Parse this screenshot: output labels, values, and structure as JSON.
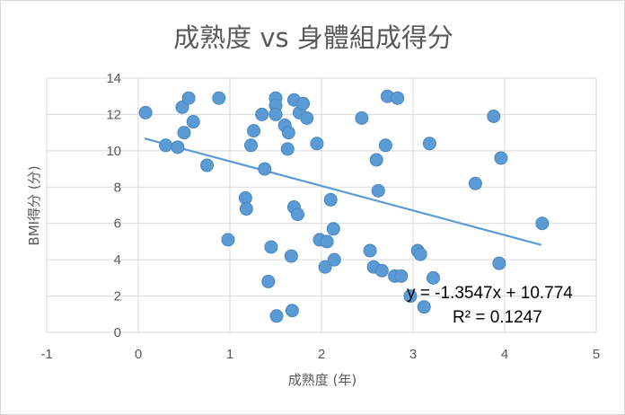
{
  "chart_data": {
    "type": "scatter",
    "title": "成熟度 vs 身體組成得分",
    "xlabel": "成熟度 (年)",
    "ylabel": "BMI得分 (分)",
    "xlim": [
      -1,
      5
    ],
    "ylim": [
      0,
      14
    ],
    "x_ticks": [
      "-1",
      "0",
      "1",
      "2",
      "3",
      "4",
      "5"
    ],
    "y_ticks": [
      "0",
      "2",
      "4",
      "6",
      "8",
      "10",
      "12",
      "14"
    ],
    "grid": true,
    "colors": {
      "point": "#5b9bd5",
      "point_edge": "#4a86be",
      "trendline": "#5b9bd5",
      "grid": "#d9d9d9",
      "text": "#595959"
    },
    "trendline": {
      "type": "linear",
      "slope": -1.3547,
      "intercept": 10.774,
      "x_range": [
        0.07,
        4.4
      ]
    },
    "annotations": {
      "equation": "y = -1.3547x + 10.774",
      "r_squared": "R² = 0.1247"
    },
    "series": [
      {
        "name": "BMI得分",
        "points": [
          [
            0.08,
            12.1
          ],
          [
            0.3,
            10.3
          ],
          [
            0.43,
            10.2
          ],
          [
            0.48,
            12.4
          ],
          [
            0.5,
            11.0
          ],
          [
            0.55,
            12.9
          ],
          [
            0.6,
            11.6
          ],
          [
            0.75,
            9.2
          ],
          [
            0.88,
            12.9
          ],
          [
            0.98,
            5.1
          ],
          [
            1.17,
            7.4
          ],
          [
            1.18,
            6.8
          ],
          [
            1.23,
            10.3
          ],
          [
            1.26,
            11.1
          ],
          [
            1.35,
            12.0
          ],
          [
            1.38,
            9.0
          ],
          [
            1.42,
            2.8
          ],
          [
            1.45,
            4.7
          ],
          [
            1.5,
            12.9
          ],
          [
            1.5,
            12.5
          ],
          [
            1.5,
            12.0
          ],
          [
            1.51,
            0.9
          ],
          [
            1.6,
            11.4
          ],
          [
            1.63,
            10.1
          ],
          [
            1.64,
            11.0
          ],
          [
            1.67,
            4.2
          ],
          [
            1.68,
            1.2
          ],
          [
            1.7,
            12.8
          ],
          [
            1.7,
            6.9
          ],
          [
            1.74,
            6.5
          ],
          [
            1.76,
            12.1
          ],
          [
            1.8,
            12.6
          ],
          [
            1.84,
            11.8
          ],
          [
            1.95,
            10.4
          ],
          [
            1.98,
            5.1
          ],
          [
            2.04,
            3.6
          ],
          [
            2.06,
            5.0
          ],
          [
            2.1,
            7.3
          ],
          [
            2.13,
            5.7
          ],
          [
            2.14,
            4.0
          ],
          [
            2.44,
            11.8
          ],
          [
            2.53,
            4.5
          ],
          [
            2.57,
            3.6
          ],
          [
            2.6,
            9.5
          ],
          [
            2.62,
            7.8
          ],
          [
            2.66,
            3.4
          ],
          [
            2.7,
            10.3
          ],
          [
            2.72,
            13.0
          ],
          [
            2.8,
            3.1
          ],
          [
            2.83,
            12.9
          ],
          [
            2.87,
            3.1
          ],
          [
            2.97,
            2.0
          ],
          [
            3.05,
            4.5
          ],
          [
            3.08,
            4.3
          ],
          [
            3.12,
            1.4
          ],
          [
            3.18,
            10.4
          ],
          [
            3.22,
            3.0
          ],
          [
            3.68,
            8.2
          ],
          [
            3.88,
            11.9
          ],
          [
            3.94,
            3.8
          ],
          [
            3.96,
            9.6
          ],
          [
            4.41,
            6.0
          ]
        ]
      }
    ]
  }
}
